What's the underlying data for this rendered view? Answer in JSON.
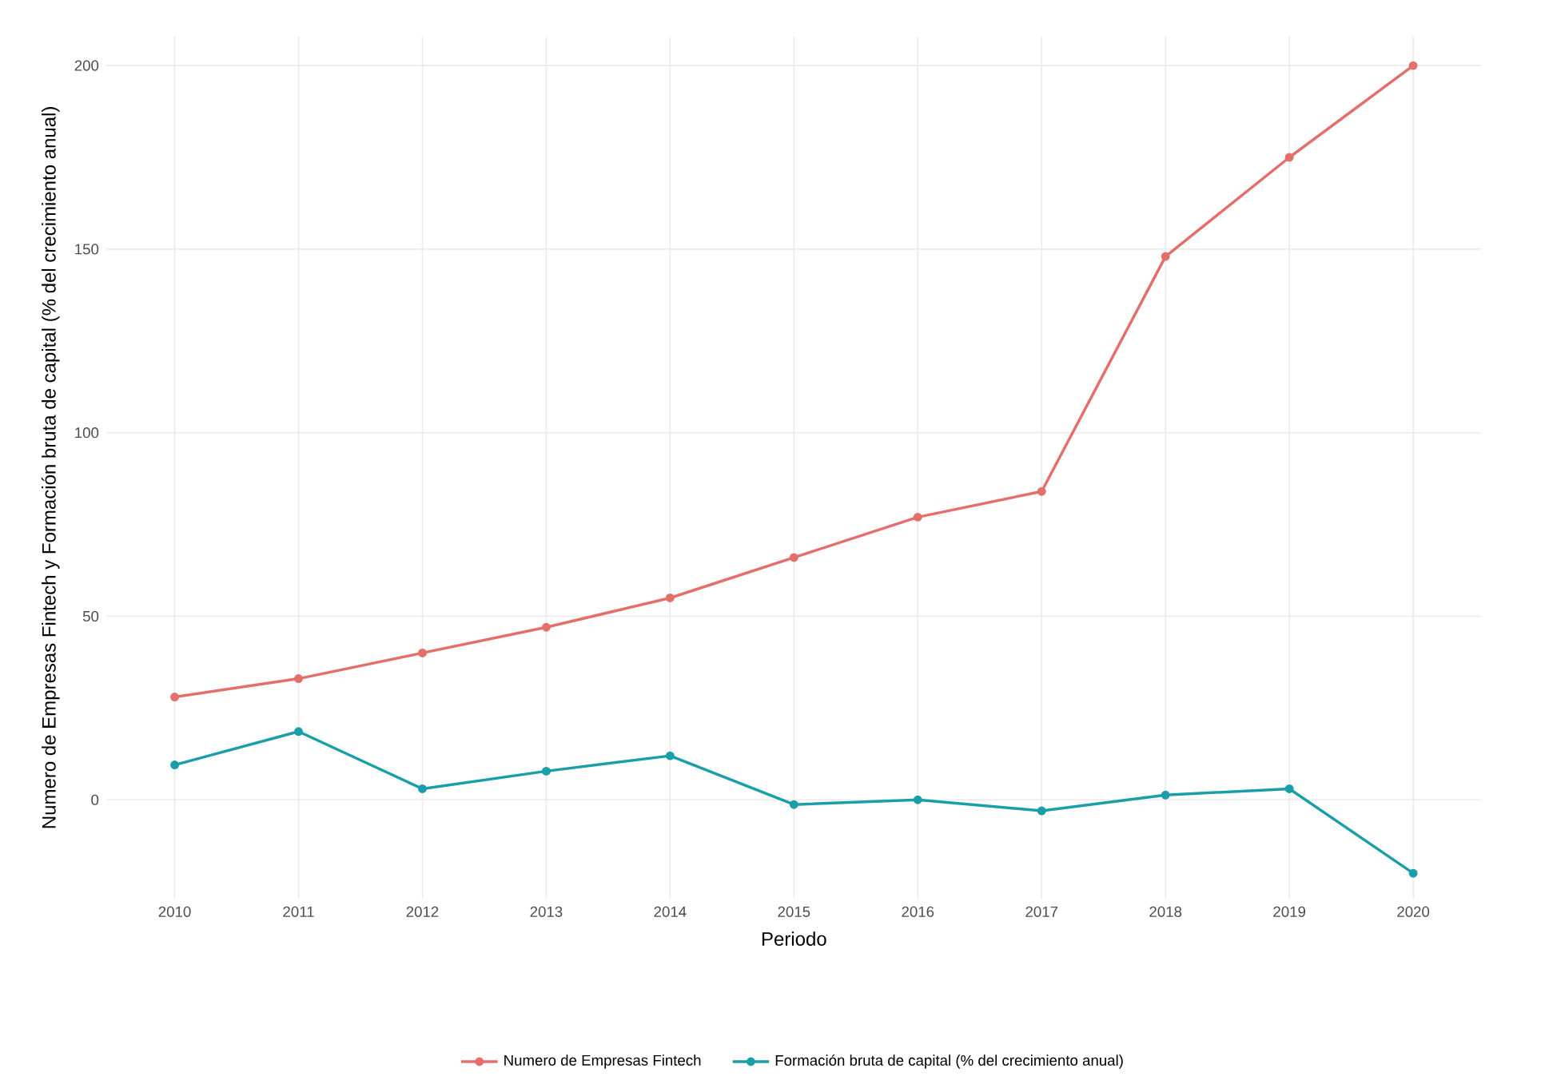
{
  "chart_data": {
    "type": "line",
    "xlabel": "Periodo",
    "ylabel": "Numero de Empresas Fintech y Formación bruta de capital (% del crecimiento anual)",
    "x": [
      2010,
      2011,
      2012,
      2013,
      2014,
      2015,
      2016,
      2017,
      2018,
      2019,
      2020
    ],
    "series": [
      {
        "name": "Numero de Empresas Fintech",
        "color": "#e46f6a",
        "values": [
          28,
          33,
          40,
          47,
          55,
          66,
          77,
          84,
          148,
          175,
          200
        ]
      },
      {
        "name": "Formación bruta de capital (% del crecimiento anual)",
        "color": "#1a9ea8",
        "values": [
          9.5,
          18.6,
          3,
          7.8,
          12,
          -1.3,
          0,
          -3,
          1.3,
          3,
          -20
        ]
      }
    ],
    "xlim": [
      2009.45,
      2020.55
    ],
    "ylim": [
      -27,
      208
    ],
    "xticks": [
      2010,
      2011,
      2012,
      2013,
      2014,
      2015,
      2016,
      2017,
      2018,
      2019,
      2020
    ],
    "yticks": [
      0,
      50,
      100,
      150,
      200
    ],
    "grid": true,
    "legend": "bottom",
    "marker": "circle",
    "line_style": "solid"
  }
}
